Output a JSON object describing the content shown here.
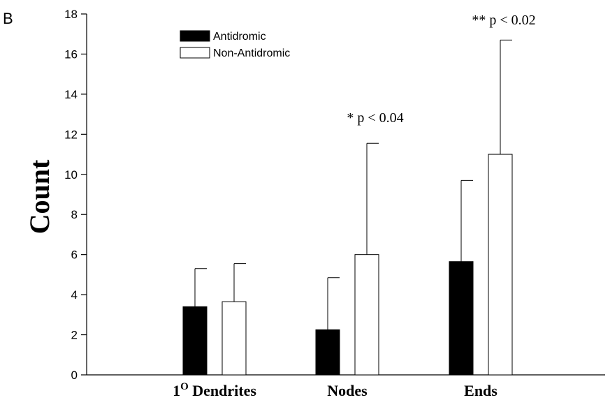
{
  "chart_data": {
    "type": "bar",
    "panel_label": "B",
    "ylabel": "Count",
    "ylim": [
      0,
      18
    ],
    "yticks": [
      0,
      2,
      4,
      6,
      8,
      10,
      12,
      14,
      16,
      18
    ],
    "categories": [
      {
        "base": "1",
        "sup": "O",
        "rest": " Dendrites"
      },
      {
        "base": "Nodes",
        "sup": "",
        "rest": ""
      },
      {
        "base": "Ends",
        "sup": "",
        "rest": ""
      }
    ],
    "series": [
      {
        "name": "Antidromic",
        "fill": "#000000",
        "values": [
          3.4,
          2.25,
          5.65
        ],
        "errors": [
          1.9,
          2.6,
          4.05
        ]
      },
      {
        "name": "Non-Antidromic",
        "fill": "#ffffff",
        "values": [
          3.65,
          6.0,
          11.0
        ],
        "errors": [
          1.9,
          5.55,
          5.7
        ]
      }
    ],
    "annotations": [
      "* p < 0.04",
      "** p < 0.02"
    ],
    "legend_position": "top-left",
    "grid": false
  }
}
